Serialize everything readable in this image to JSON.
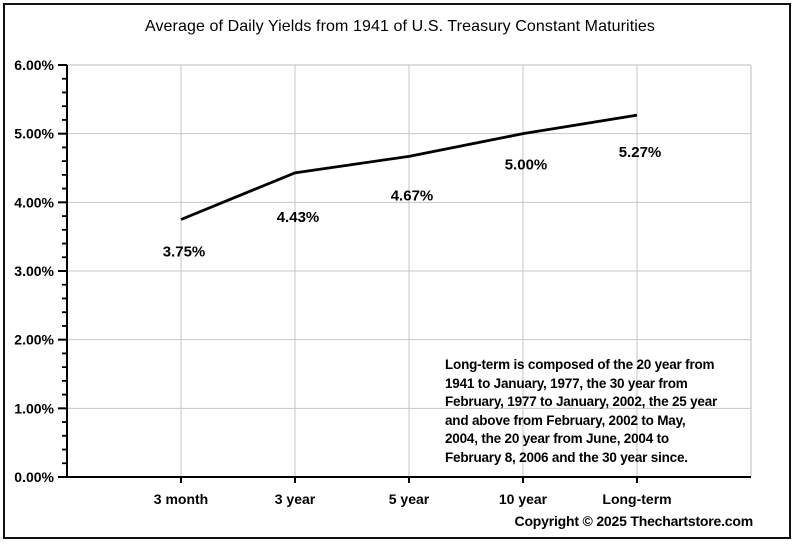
{
  "title": "Average of Daily Yields from 1941 of U.S. Treasury Constant Maturities",
  "chart_data": {
    "type": "line",
    "title": "Average of Daily Yields from 1941 of U.S. Treasury Constant Maturities",
    "categories": [
      "3 month",
      "3 year",
      "5 year",
      "10 year",
      "Long-term"
    ],
    "values": [
      3.75,
      4.43,
      4.67,
      5.0,
      5.27
    ],
    "data_labels": [
      "3.75%",
      "4.43%",
      "4.67%",
      "5.00%",
      "5.27%"
    ],
    "y_tick_labels": [
      "0.00%",
      "1.00%",
      "2.00%",
      "3.00%",
      "4.00%",
      "5.00%",
      "6.00%"
    ],
    "ylim": [
      0,
      6
    ],
    "y_major_step": 1,
    "y_minor_step": 0.2,
    "grid": true,
    "legend": "none",
    "line_color": "#000000",
    "grid_color": "#c6c6c6",
    "axis_color": "#000000"
  },
  "annotation": {
    "lines": [
      "Long-term is composed of the 20 year from",
      "1941 to January, 1977, the 30 year from",
      "February, 1977 to January, 2002, the 25 year",
      "and above from February, 2002 to May,",
      "2004, the 20 year from June, 2004 to",
      "February 8, 2006 and the 30 year since."
    ]
  },
  "copyright": "Copyright © 2025 Thechartstore.com"
}
